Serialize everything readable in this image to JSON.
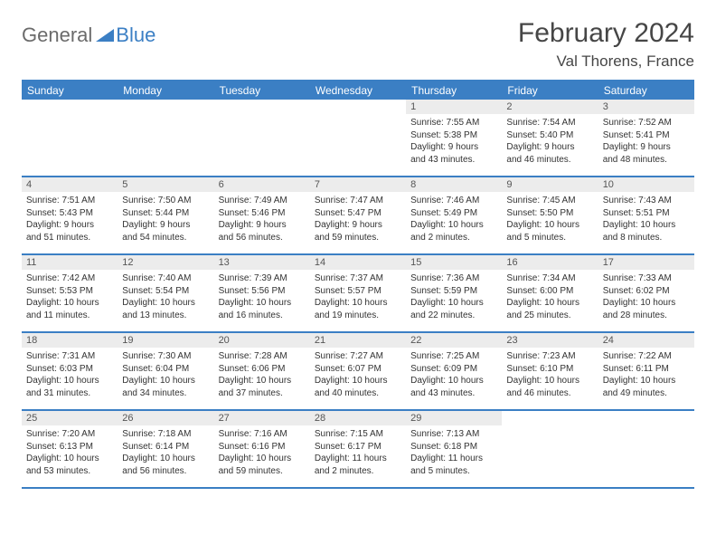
{
  "logo": {
    "text1": "General",
    "text2": "Blue"
  },
  "title": "February 2024",
  "location": "Val Thorens, France",
  "colors": {
    "header_bg": "#3b7fc4",
    "header_text": "#ffffff",
    "daynum_bg": "#ececec",
    "border": "#3b7fc4",
    "body_text": "#333333",
    "title_text": "#464646"
  },
  "weekdays": [
    "Sunday",
    "Monday",
    "Tuesday",
    "Wednesday",
    "Thursday",
    "Friday",
    "Saturday"
  ],
  "weeks": [
    [
      null,
      null,
      null,
      null,
      {
        "n": "1",
        "sunrise": "7:55 AM",
        "sunset": "5:38 PM",
        "dl1": "Daylight: 9 hours",
        "dl2": "and 43 minutes."
      },
      {
        "n": "2",
        "sunrise": "7:54 AM",
        "sunset": "5:40 PM",
        "dl1": "Daylight: 9 hours",
        "dl2": "and 46 minutes."
      },
      {
        "n": "3",
        "sunrise": "7:52 AM",
        "sunset": "5:41 PM",
        "dl1": "Daylight: 9 hours",
        "dl2": "and 48 minutes."
      }
    ],
    [
      {
        "n": "4",
        "sunrise": "7:51 AM",
        "sunset": "5:43 PM",
        "dl1": "Daylight: 9 hours",
        "dl2": "and 51 minutes."
      },
      {
        "n": "5",
        "sunrise": "7:50 AM",
        "sunset": "5:44 PM",
        "dl1": "Daylight: 9 hours",
        "dl2": "and 54 minutes."
      },
      {
        "n": "6",
        "sunrise": "7:49 AM",
        "sunset": "5:46 PM",
        "dl1": "Daylight: 9 hours",
        "dl2": "and 56 minutes."
      },
      {
        "n": "7",
        "sunrise": "7:47 AM",
        "sunset": "5:47 PM",
        "dl1": "Daylight: 9 hours",
        "dl2": "and 59 minutes."
      },
      {
        "n": "8",
        "sunrise": "7:46 AM",
        "sunset": "5:49 PM",
        "dl1": "Daylight: 10 hours",
        "dl2": "and 2 minutes."
      },
      {
        "n": "9",
        "sunrise": "7:45 AM",
        "sunset": "5:50 PM",
        "dl1": "Daylight: 10 hours",
        "dl2": "and 5 minutes."
      },
      {
        "n": "10",
        "sunrise": "7:43 AM",
        "sunset": "5:51 PM",
        "dl1": "Daylight: 10 hours",
        "dl2": "and 8 minutes."
      }
    ],
    [
      {
        "n": "11",
        "sunrise": "7:42 AM",
        "sunset": "5:53 PM",
        "dl1": "Daylight: 10 hours",
        "dl2": "and 11 minutes."
      },
      {
        "n": "12",
        "sunrise": "7:40 AM",
        "sunset": "5:54 PM",
        "dl1": "Daylight: 10 hours",
        "dl2": "and 13 minutes."
      },
      {
        "n": "13",
        "sunrise": "7:39 AM",
        "sunset": "5:56 PM",
        "dl1": "Daylight: 10 hours",
        "dl2": "and 16 minutes."
      },
      {
        "n": "14",
        "sunrise": "7:37 AM",
        "sunset": "5:57 PM",
        "dl1": "Daylight: 10 hours",
        "dl2": "and 19 minutes."
      },
      {
        "n": "15",
        "sunrise": "7:36 AM",
        "sunset": "5:59 PM",
        "dl1": "Daylight: 10 hours",
        "dl2": "and 22 minutes."
      },
      {
        "n": "16",
        "sunrise": "7:34 AM",
        "sunset": "6:00 PM",
        "dl1": "Daylight: 10 hours",
        "dl2": "and 25 minutes."
      },
      {
        "n": "17",
        "sunrise": "7:33 AM",
        "sunset": "6:02 PM",
        "dl1": "Daylight: 10 hours",
        "dl2": "and 28 minutes."
      }
    ],
    [
      {
        "n": "18",
        "sunrise": "7:31 AM",
        "sunset": "6:03 PM",
        "dl1": "Daylight: 10 hours",
        "dl2": "and 31 minutes."
      },
      {
        "n": "19",
        "sunrise": "7:30 AM",
        "sunset": "6:04 PM",
        "dl1": "Daylight: 10 hours",
        "dl2": "and 34 minutes."
      },
      {
        "n": "20",
        "sunrise": "7:28 AM",
        "sunset": "6:06 PM",
        "dl1": "Daylight: 10 hours",
        "dl2": "and 37 minutes."
      },
      {
        "n": "21",
        "sunrise": "7:27 AM",
        "sunset": "6:07 PM",
        "dl1": "Daylight: 10 hours",
        "dl2": "and 40 minutes."
      },
      {
        "n": "22",
        "sunrise": "7:25 AM",
        "sunset": "6:09 PM",
        "dl1": "Daylight: 10 hours",
        "dl2": "and 43 minutes."
      },
      {
        "n": "23",
        "sunrise": "7:23 AM",
        "sunset": "6:10 PM",
        "dl1": "Daylight: 10 hours",
        "dl2": "and 46 minutes."
      },
      {
        "n": "24",
        "sunrise": "7:22 AM",
        "sunset": "6:11 PM",
        "dl1": "Daylight: 10 hours",
        "dl2": "and 49 minutes."
      }
    ],
    [
      {
        "n": "25",
        "sunrise": "7:20 AM",
        "sunset": "6:13 PM",
        "dl1": "Daylight: 10 hours",
        "dl2": "and 53 minutes."
      },
      {
        "n": "26",
        "sunrise": "7:18 AM",
        "sunset": "6:14 PM",
        "dl1": "Daylight: 10 hours",
        "dl2": "and 56 minutes."
      },
      {
        "n": "27",
        "sunrise": "7:16 AM",
        "sunset": "6:16 PM",
        "dl1": "Daylight: 10 hours",
        "dl2": "and 59 minutes."
      },
      {
        "n": "28",
        "sunrise": "7:15 AM",
        "sunset": "6:17 PM",
        "dl1": "Daylight: 11 hours",
        "dl2": "and 2 minutes."
      },
      {
        "n": "29",
        "sunrise": "7:13 AM",
        "sunset": "6:18 PM",
        "dl1": "Daylight: 11 hours",
        "dl2": "and 5 minutes."
      },
      null,
      null
    ]
  ],
  "labels": {
    "sunrise_prefix": "Sunrise: ",
    "sunset_prefix": "Sunset: "
  }
}
